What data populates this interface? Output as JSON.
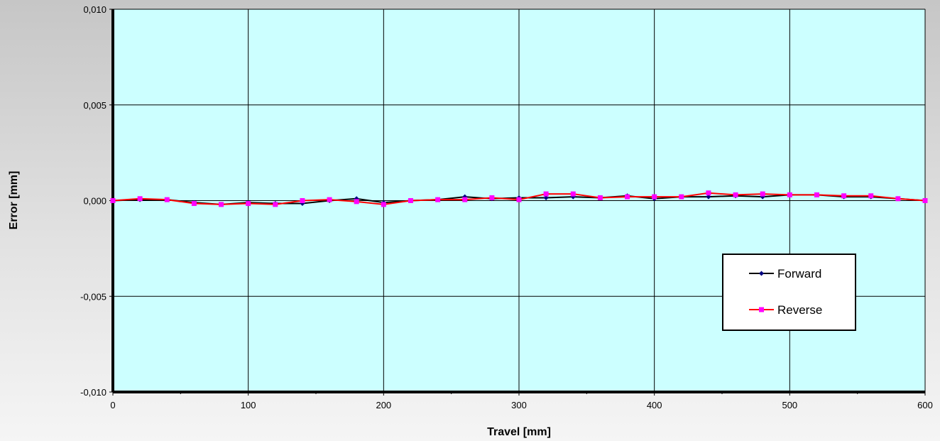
{
  "chart_data": {
    "type": "line",
    "title": "",
    "xlabel": "Travel  [mm]",
    "ylabel": "Error [mm]",
    "xlim": [
      0,
      600
    ],
    "ylim": [
      -0.01,
      0.01
    ],
    "x_ticks": [
      0,
      100,
      200,
      300,
      400,
      500,
      600
    ],
    "x_tick_labels": [
      "0",
      "100",
      "200",
      "300",
      "400",
      "500",
      "600"
    ],
    "y_ticks": [
      -0.01,
      -0.005,
      0.0,
      0.005,
      0.01
    ],
    "y_tick_labels": [
      "-0,010",
      "-0,005",
      "0,000",
      "0,005",
      "0,010"
    ],
    "grid": true,
    "legend_position": "right",
    "plot_background": "#ccffff",
    "x": [
      0,
      20,
      40,
      60,
      80,
      100,
      120,
      140,
      160,
      180,
      200,
      220,
      240,
      260,
      280,
      300,
      320,
      340,
      360,
      380,
      400,
      420,
      440,
      460,
      480,
      500,
      520,
      540,
      560,
      580,
      600
    ],
    "series": [
      {
        "name": "Forward",
        "color": "#000000",
        "marker_color": "#000080",
        "marker": "diamond",
        "values": [
          0.0,
          5e-05,
          5e-05,
          -0.0001,
          -0.0002,
          -0.0001,
          -0.00015,
          -0.00015,
          0.0,
          0.0001,
          -0.0001,
          0.0,
          5e-05,
          0.0002,
          0.0001,
          0.00015,
          0.00015,
          0.0002,
          0.00015,
          0.00025,
          0.0001,
          0.0002,
          0.0002,
          0.00025,
          0.0002,
          0.0003,
          0.0003,
          0.0002,
          0.0002,
          0.0001,
          0.0
        ]
      },
      {
        "name": "Reverse",
        "color": "#ff0000",
        "marker_color": "#ff00ff",
        "marker": "square",
        "values": [
          0.0,
          0.0001,
          5e-05,
          -0.00015,
          -0.0002,
          -0.00015,
          -0.0002,
          0.0,
          5e-05,
          -5e-05,
          -0.0002,
          0.0,
          5e-05,
          5e-05,
          0.00015,
          5e-05,
          0.00035,
          0.00035,
          0.00015,
          0.0002,
          0.0002,
          0.0002,
          0.0004,
          0.0003,
          0.00035,
          0.0003,
          0.0003,
          0.00025,
          0.00025,
          0.0001,
          0.0
        ]
      }
    ]
  }
}
